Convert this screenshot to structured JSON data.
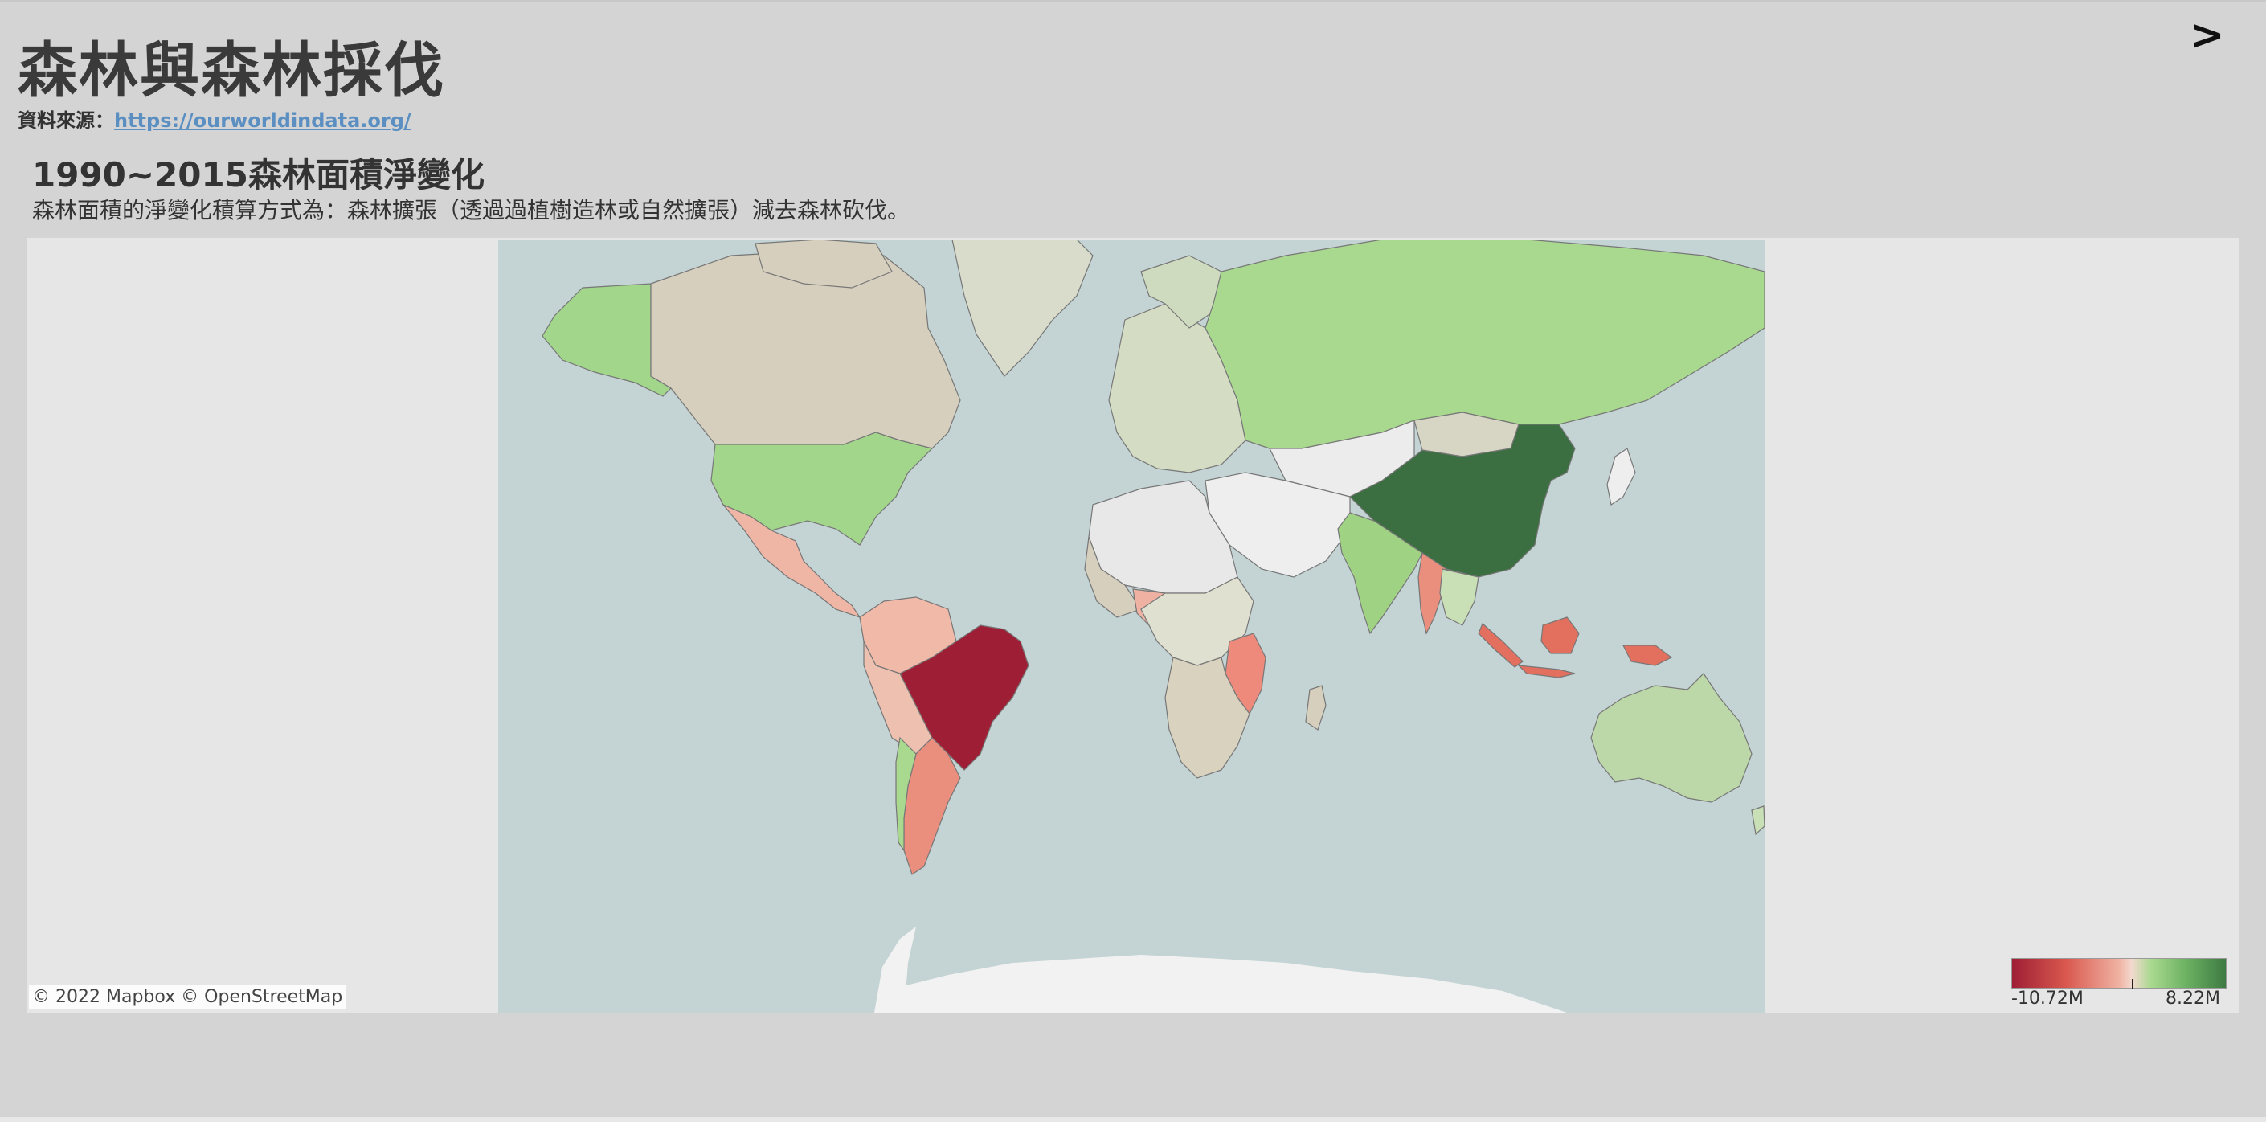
{
  "page": {
    "title": "森林與森林採伐",
    "source_label": "資料來源：",
    "source_link": "https://ourworldindata.org/",
    "next_label": ">"
  },
  "sheet": {
    "title": "1990~2015森林面積淨變化",
    "subtitle": "森林面積的淨變化積算方式為：森林擴張（透過過植樹造林或自然擴張）減去森林砍伐。"
  },
  "map": {
    "attribution": "© 2022 Mapbox © OpenStreetMap",
    "ocean_color": "#c4d3d3",
    "regions": [
      {
        "name": "China",
        "fill": "#3b6e40"
      },
      {
        "name": "Brazil",
        "fill": "#9e1f35"
      },
      {
        "name": "Russia",
        "fill": "#a9d98f"
      },
      {
        "name": "United States",
        "fill": "#a2d68a"
      },
      {
        "name": "India",
        "fill": "#9fd283"
      },
      {
        "name": "Canada",
        "fill": "#d6cfbd"
      },
      {
        "name": "Australia",
        "fill": "#bcd8a8"
      },
      {
        "name": "Indonesia",
        "fill": "#e3705f"
      },
      {
        "name": "Myanmar",
        "fill": "#ea8e7e"
      },
      {
        "name": "Argentina",
        "fill": "#efb2a2"
      },
      {
        "name": "Mexico",
        "fill": "#efb6a6"
      }
    ]
  },
  "legend": {
    "min_label": "-10.72M",
    "max_label": "8.22M",
    "min_value": -10720000,
    "max_value": 8220000,
    "colors": [
      "#9e1f35",
      "#d9574e",
      "#efb2a2",
      "#f3d9cf",
      "#a9d98f",
      "#3e7a43"
    ]
  }
}
